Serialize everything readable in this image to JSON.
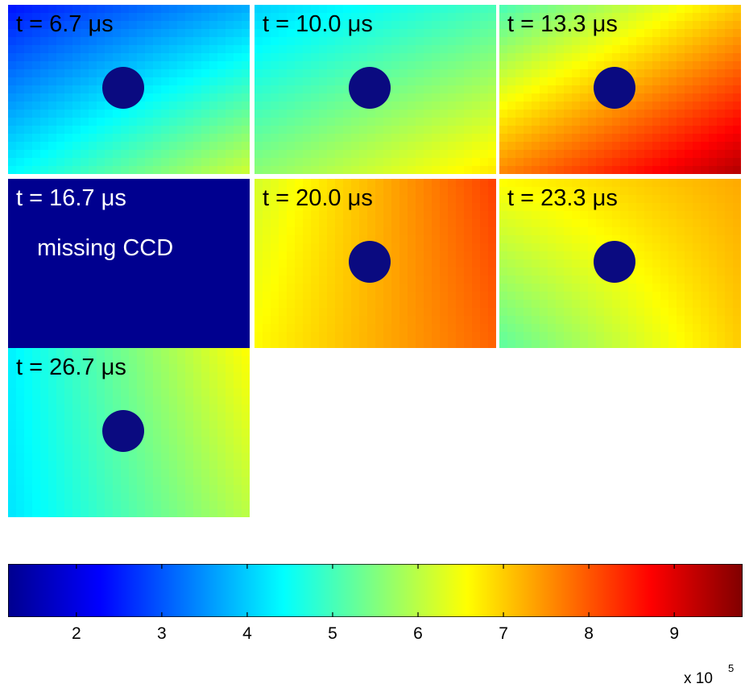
{
  "colormap": {
    "name": "jet",
    "stops": [
      "#00008f",
      "#0000ff",
      "#00ffff",
      "#ffff00",
      "#ff0000",
      "#800000"
    ],
    "min_value": 1.2,
    "max_value": 9.8,
    "ticks": [
      "2",
      "3",
      "4",
      "5",
      "6",
      "7",
      "8",
      "9"
    ],
    "tick_values": [
      2,
      3,
      4,
      5,
      6,
      7,
      8,
      9
    ],
    "multiplier_text": "x 10",
    "multiplier_exponent": "5"
  },
  "panels": [
    {
      "label": "t = 6.7 μs",
      "levels": [
        2.4,
        3.7,
        4.4,
        6.2
      ],
      "obstacle_color": "#0a0a80"
    },
    {
      "label": "t = 10.0 μs",
      "levels": [
        4.0,
        5.0,
        5.6,
        6.8
      ],
      "obstacle_color": "#0a0a80"
    },
    {
      "label": "t = 13.3 μs",
      "levels": [
        5.0,
        7.0,
        7.6,
        9.4
      ],
      "obstacle_color": "#0a0a80"
    },
    {
      "label": "t = 16.7 μs",
      "levels": [
        1.2,
        1.2,
        1.2,
        1.2
      ],
      "note": "missing CCD",
      "missing": true
    },
    {
      "label": "t = 20.0 μs",
      "levels": [
        6.2,
        8.2,
        6.6,
        7.9
      ],
      "obstacle_color": "#0a0a80"
    },
    {
      "label": "t = 23.3 μs",
      "levels": [
        6.6,
        7.3,
        5.2,
        7.0
      ],
      "obstacle_color": "#0a0a80"
    },
    {
      "label": "t = 26.7 μs",
      "levels": [
        4.3,
        6.6,
        4.2,
        6.0
      ],
      "obstacle_color": "#0a0a80"
    }
  ]
}
